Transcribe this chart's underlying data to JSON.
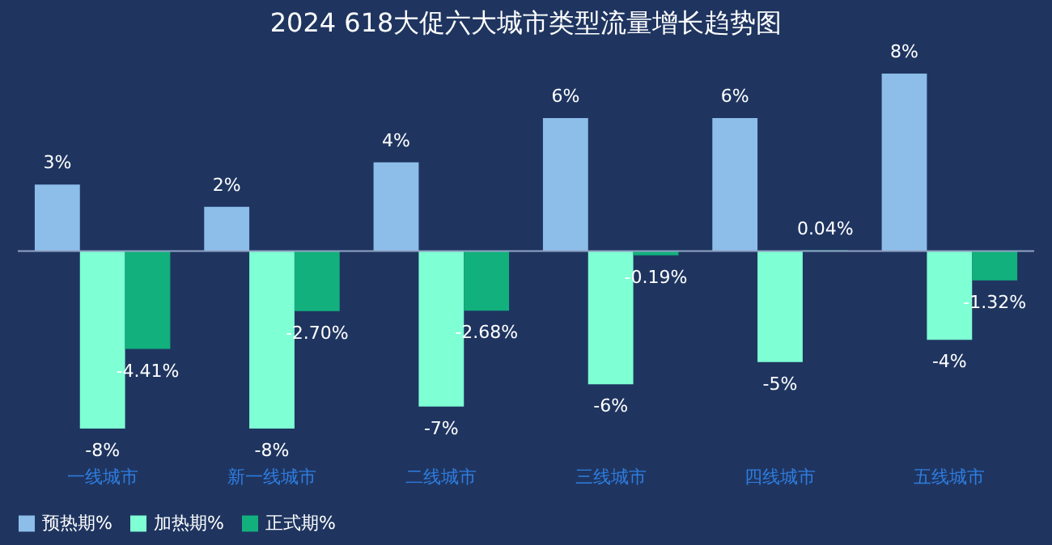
{
  "chart_data": {
    "type": "bar",
    "title": "2024 618大促六大城市类型流量增长趋势图",
    "categories": [
      "一线城市",
      "新一线城市",
      "二线城市",
      "三线城市",
      "四线城市",
      "五线城市"
    ],
    "series": [
      {
        "name": "预热期%",
        "color": "#8dbde9",
        "values": [
          3,
          2,
          4,
          6,
          6,
          8
        ],
        "value_labels": [
          "3%",
          "2%",
          "4%",
          "6%",
          "6%",
          "8%"
        ]
      },
      {
        "name": "加热期%",
        "color": "#7fffd4",
        "values": [
          -8,
          -8,
          -7,
          -6,
          -5,
          -4
        ],
        "value_labels": [
          "-8%",
          "-8%",
          "-7%",
          "-6%",
          "-5%",
          "-4%"
        ]
      },
      {
        "name": "正式期%",
        "color": "#12b07c",
        "values": [
          -4.41,
          -2.7,
          -2.68,
          -0.19,
          0.04,
          -1.32
        ],
        "value_labels": [
          "-4.41%",
          "-2.70%",
          "-2.68%",
          "-0.19%",
          "0.04%",
          "-1.32%"
        ]
      }
    ],
    "ref_lines": [
      {
        "axis": "y",
        "value": 0,
        "color": "#8fa3c4"
      }
    ],
    "legend": "bottom"
  }
}
